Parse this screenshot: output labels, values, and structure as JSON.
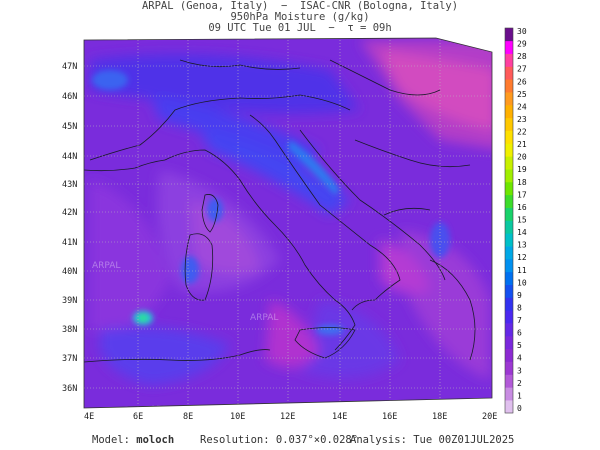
{
  "header": {
    "line1": "ARPAL (Genoa, Italy)  −  ISAC-CNR (Bologna, Italy)",
    "line2": "950hPa Moisture (g/kg)",
    "line3": "09 UTC Tue 01 JUL  −  τ = 09h"
  },
  "map": {
    "lat_labels": [
      "47N",
      "46N",
      "45N",
      "44N",
      "43N",
      "42N",
      "41N",
      "40N",
      "39N",
      "38N",
      "37N",
      "36N"
    ],
    "lon_labels": [
      "4E",
      "6E",
      "8E",
      "10E",
      "12E",
      "14E",
      "16E",
      "18E",
      "20E"
    ],
    "watermark": "ARPAL"
  },
  "colorbar": {
    "labels": [
      "30",
      "29",
      "28",
      "27",
      "26",
      "25",
      "24",
      "23",
      "22",
      "21",
      "20",
      "19",
      "18",
      "17",
      "16",
      "15",
      "14",
      "13",
      "12",
      "11",
      "10",
      "9",
      "8",
      "7",
      "6",
      "5",
      "4",
      "3",
      "2",
      "1",
      "0"
    ],
    "colors": [
      "#6a0e8c",
      "#ff00ff",
      "#ff3fa0",
      "#ff5a5a",
      "#ff7b2e",
      "#ff9a1f",
      "#ffb000",
      "#ffc800",
      "#ffe000",
      "#f0f000",
      "#c8f000",
      "#a0ee00",
      "#6ee600",
      "#3cdc2a",
      "#19d26a",
      "#0ac8a0",
      "#00c0c8",
      "#00a8e6",
      "#0090f0",
      "#0070f0",
      "#1450f0",
      "#3232f0",
      "#4b28f0",
      "#6428e6",
      "#7a28dc",
      "#8c2ad2",
      "#9c38d2",
      "#b25ad8",
      "#c88ce2",
      "#e0c0ee"
    ]
  },
  "footer": {
    "model_label": "Model:",
    "model_value": "moloch",
    "resolution_label": "Resolution:",
    "resolution_value": "0.037°×0.028°",
    "analysis_label": "Analysis:",
    "analysis_value": "Tue 00Z01JUL2025"
  }
}
